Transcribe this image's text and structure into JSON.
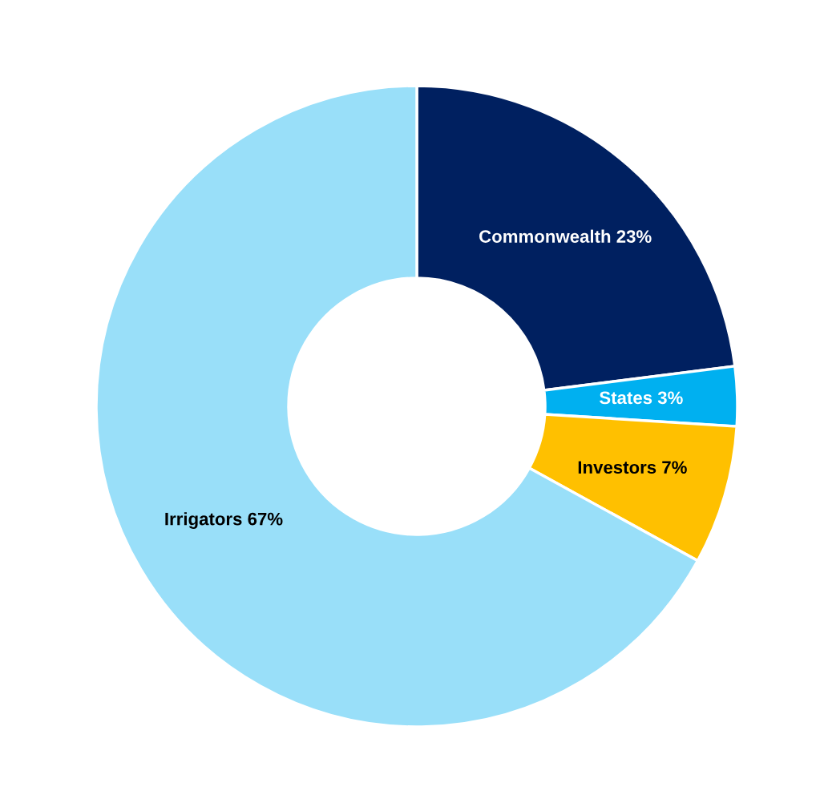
{
  "chart_data": {
    "type": "donut",
    "categories": [
      "Commonwealth",
      "States",
      "Investors",
      "Irrigators"
    ],
    "values": [
      23,
      3,
      7,
      67
    ],
    "colors": [
      "#002060",
      "#00b0f0",
      "#ffc000",
      "#99dff9"
    ],
    "value_labels": [
      "23%",
      "3%",
      "7%",
      "67%"
    ],
    "legend": false
  }
}
